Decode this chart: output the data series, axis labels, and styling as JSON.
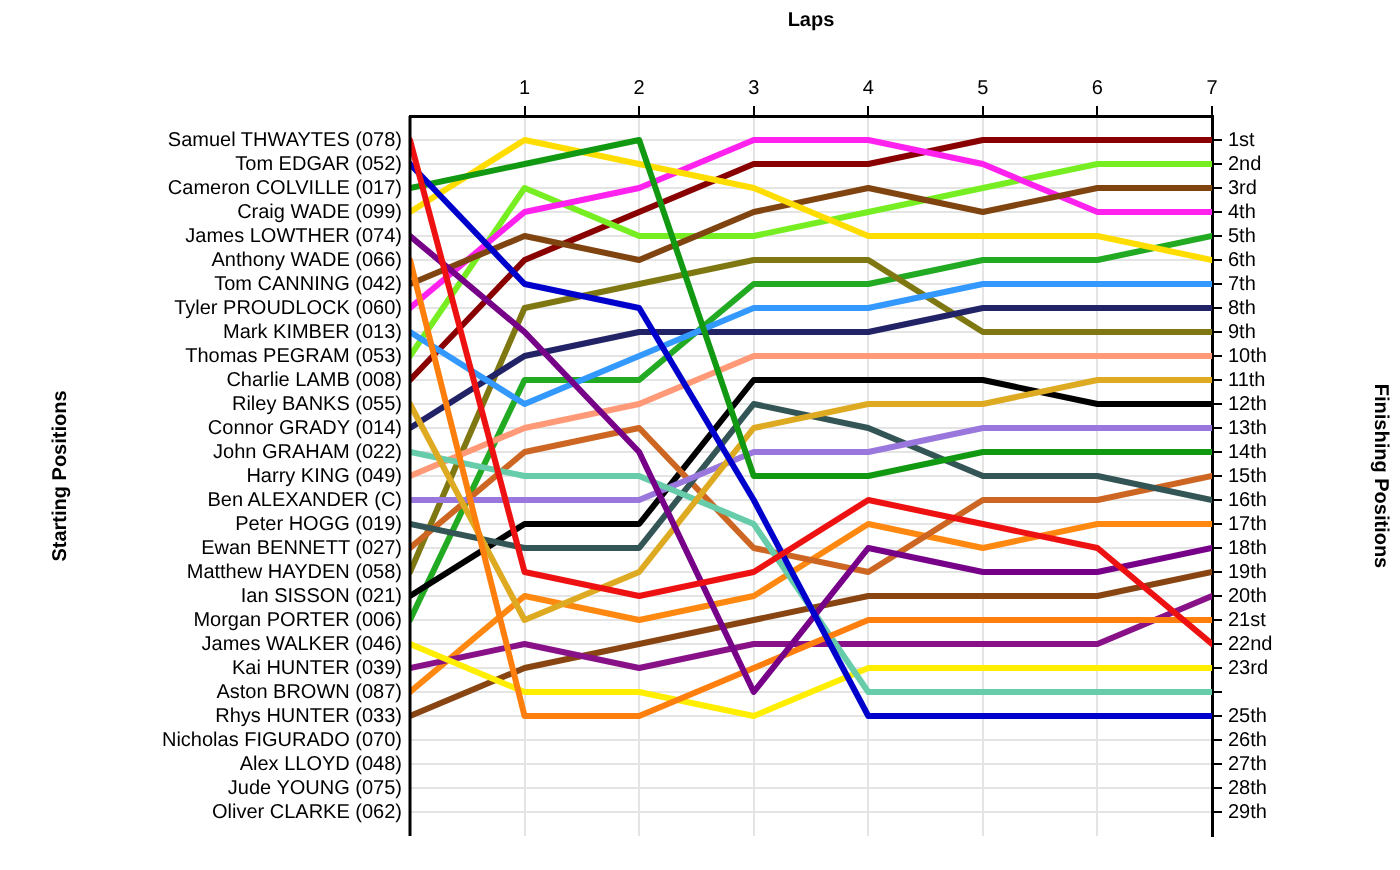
{
  "chart_data": {
    "type": "line",
    "xlabel": "Laps",
    "ylabel": "Finishing Positions",
    "annotations": [
      "Starting Positions",
      "Nicholas FIGURADO (070)",
      "Alex LLOYD (048)",
      "Jude YOUNG (075)",
      "Oliver CLARKE (062)"
    ],
    "x": [
      0,
      1,
      2,
      3,
      4,
      5,
      6,
      7
    ],
    "xlim": [
      0,
      7
    ],
    "xticks": [
      1,
      2,
      3,
      4,
      5,
      6,
      7
    ],
    "ylim": [
      30,
      0
    ],
    "yticks": [
      {
        "value": 1,
        "label": "1st"
      },
      {
        "value": 2,
        "label": "2nd"
      },
      {
        "value": 3,
        "label": "3rd"
      },
      {
        "value": 4,
        "label": "4th"
      },
      {
        "value": 5,
        "label": "5th"
      },
      {
        "value": 6,
        "label": "6th"
      },
      {
        "value": 7,
        "label": "7th"
      },
      {
        "value": 8,
        "label": "8th"
      },
      {
        "value": 9,
        "label": "9th"
      },
      {
        "value": 10,
        "label": "10th"
      },
      {
        "value": 11,
        "label": "11th"
      },
      {
        "value": 12,
        "label": "12th"
      },
      {
        "value": 13,
        "label": "13th"
      },
      {
        "value": 14,
        "label": "14th"
      },
      {
        "value": 15,
        "label": "15th"
      },
      {
        "value": 16,
        "label": "16th"
      },
      {
        "value": 17,
        "label": "17th"
      },
      {
        "value": 18,
        "label": "18th"
      },
      {
        "value": 19,
        "label": "19th"
      },
      {
        "value": 20,
        "label": "20th"
      },
      {
        "value": 21,
        "label": "21st"
      },
      {
        "value": 22,
        "label": "22nd"
      },
      {
        "value": 23,
        "label": "23rd"
      },
      {
        "value": 24,
        "label": null
      },
      {
        "value": 25,
        "label": "25th"
      },
      {
        "value": 26,
        "label": "26th"
      },
      {
        "value": 27,
        "label": "27th"
      },
      {
        "value": 28,
        "label": "28th"
      },
      {
        "value": 29,
        "label": "29th"
      }
    ],
    "grid": true,
    "legend": "left",
    "marker": "none",
    "line_style": "solid",
    "series": [
      {
        "name": "Samuel THWAYTES (078)",
        "color": "#ee1111",
        "values": [
          1,
          19,
          20,
          19,
          16,
          17,
          18,
          22
        ]
      },
      {
        "name": "Tom EDGAR (052)",
        "color": "#0000cc",
        "values": [
          2,
          7,
          8,
          16,
          25,
          25,
          25,
          25
        ]
      },
      {
        "name": "Cameron COLVILLE (017)",
        "color": "#119911",
        "values": [
          3,
          2,
          1,
          15,
          15,
          14,
          14,
          14
        ]
      },
      {
        "name": "Craig WADE (099)",
        "color": "#ffdd00",
        "values": [
          4,
          1,
          2,
          3,
          5,
          5,
          5,
          6
        ]
      },
      {
        "name": "James LOWTHER (074)",
        "color": "#770088",
        "values": [
          5,
          9,
          14,
          24,
          18,
          19,
          19,
          18
        ]
      },
      {
        "name": "Anthony WADE (066)",
        "color": "#ff7f0e",
        "values": [
          6,
          25,
          25,
          23,
          21,
          21,
          21,
          21
        ]
      },
      {
        "name": "Tom CANNING (042)",
        "color": "#7f4410",
        "values": [
          7,
          5,
          6,
          4,
          3,
          4,
          3,
          3
        ]
      },
      {
        "name": "Tyler PROUDLOCK (060)",
        "color": "#ff22ee",
        "values": [
          8,
          4,
          3,
          1,
          1,
          2,
          4,
          4
        ]
      },
      {
        "name": "Mark KIMBER (013)",
        "color": "#3399ff",
        "values": [
          9,
          12,
          10,
          8,
          8,
          7,
          7,
          7
        ]
      },
      {
        "name": "Thomas PEGRAM (053)",
        "color": "#77ee22",
        "values": [
          10,
          3,
          5,
          5,
          4,
          3,
          2,
          2
        ]
      },
      {
        "name": "Charlie LAMB (008)",
        "color": "#880000",
        "values": [
          11,
          6,
          4,
          2,
          2,
          1,
          1,
          1
        ]
      },
      {
        "name": "Riley BANKS (055)",
        "color": "#ddaa22",
        "values": [
          12,
          21,
          19,
          13,
          12,
          12,
          11,
          11
        ]
      },
      {
        "name": "Connor GRADY (014)",
        "color": "#222266",
        "values": [
          13,
          10,
          9,
          9,
          9,
          8,
          8,
          8
        ]
      },
      {
        "name": "John GRAHAM (022)",
        "color": "#66ccaa",
        "values": [
          14,
          15,
          15,
          17,
          24,
          24,
          24,
          24
        ]
      },
      {
        "name": "Harry KING (049)",
        "color": "#ff9977",
        "values": [
          15,
          13,
          12,
          10,
          10,
          10,
          10,
          10
        ]
      },
      {
        "name": "Ben ALEXANDER (C)",
        "color": "#9977dd",
        "values": [
          16,
          16,
          16,
          14,
          14,
          13,
          13,
          13
        ]
      },
      {
        "name": "Peter HOGG (019)",
        "color": "#335555",
        "values": [
          17,
          18,
          18,
          12,
          13,
          15,
          15,
          16
        ]
      },
      {
        "name": "Ewan BENNETT (027)",
        "color": "#cc6622",
        "values": [
          18,
          14,
          13,
          18,
          19,
          16,
          16,
          15
        ]
      },
      {
        "name": "Matthew HAYDEN (058)",
        "color": "#7f7711",
        "values": [
          19,
          8,
          7,
          6,
          6,
          9,
          9,
          9
        ]
      },
      {
        "name": "Ian SISSON (021)",
        "color": "#000000",
        "values": [
          20,
          17,
          17,
          11,
          11,
          11,
          12,
          12
        ]
      },
      {
        "name": "Morgan PORTER (006)",
        "color": "#22aa22",
        "values": [
          21,
          11,
          11,
          7,
          7,
          6,
          6,
          5
        ]
      },
      {
        "name": "James WALKER (046)",
        "color": "#ffee00",
        "values": [
          22,
          24,
          24,
          25,
          23,
          23,
          23,
          23
        ]
      },
      {
        "name": "Kai HUNTER (039)",
        "color": "#881188",
        "values": [
          23,
          22,
          23,
          22,
          22,
          22,
          22,
          20
        ]
      },
      {
        "name": "Aston BROWN (087)",
        "color": "#ff8811",
        "values": [
          24,
          20,
          21,
          20,
          17,
          18,
          17,
          17
        ]
      },
      {
        "name": "Rhys HUNTER (033)",
        "color": "#884411",
        "values": [
          25,
          23,
          22,
          21,
          20,
          20,
          20,
          19
        ]
      }
    ]
  }
}
